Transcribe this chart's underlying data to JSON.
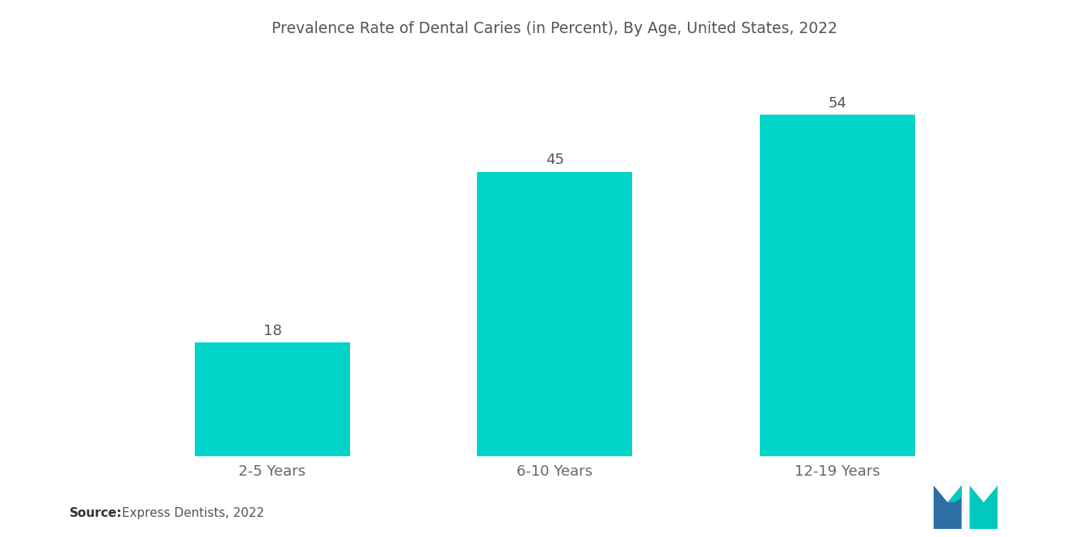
{
  "title": "Prevalence Rate of Dental Caries (in Percent), By Age, United States, 2022",
  "categories": [
    "2-5 Years",
    "6-10 Years",
    "12-19 Years"
  ],
  "values": [
    18,
    45,
    54
  ],
  "bar_color": "#00D4C8",
  "background_color": "#ffffff",
  "title_color": "#555555",
  "label_color": "#666666",
  "value_color": "#555555",
  "source_bold": "Source:",
  "source_rest": "  Express Dentists, 2022",
  "ylim": [
    0,
    62
  ],
  "title_fontsize": 13.5,
  "label_fontsize": 13,
  "value_fontsize": 13,
  "source_fontsize": 11,
  "bar_width": 0.55,
  "logo_blue": "#2D6EA4",
  "logo_teal": "#00C9BE"
}
